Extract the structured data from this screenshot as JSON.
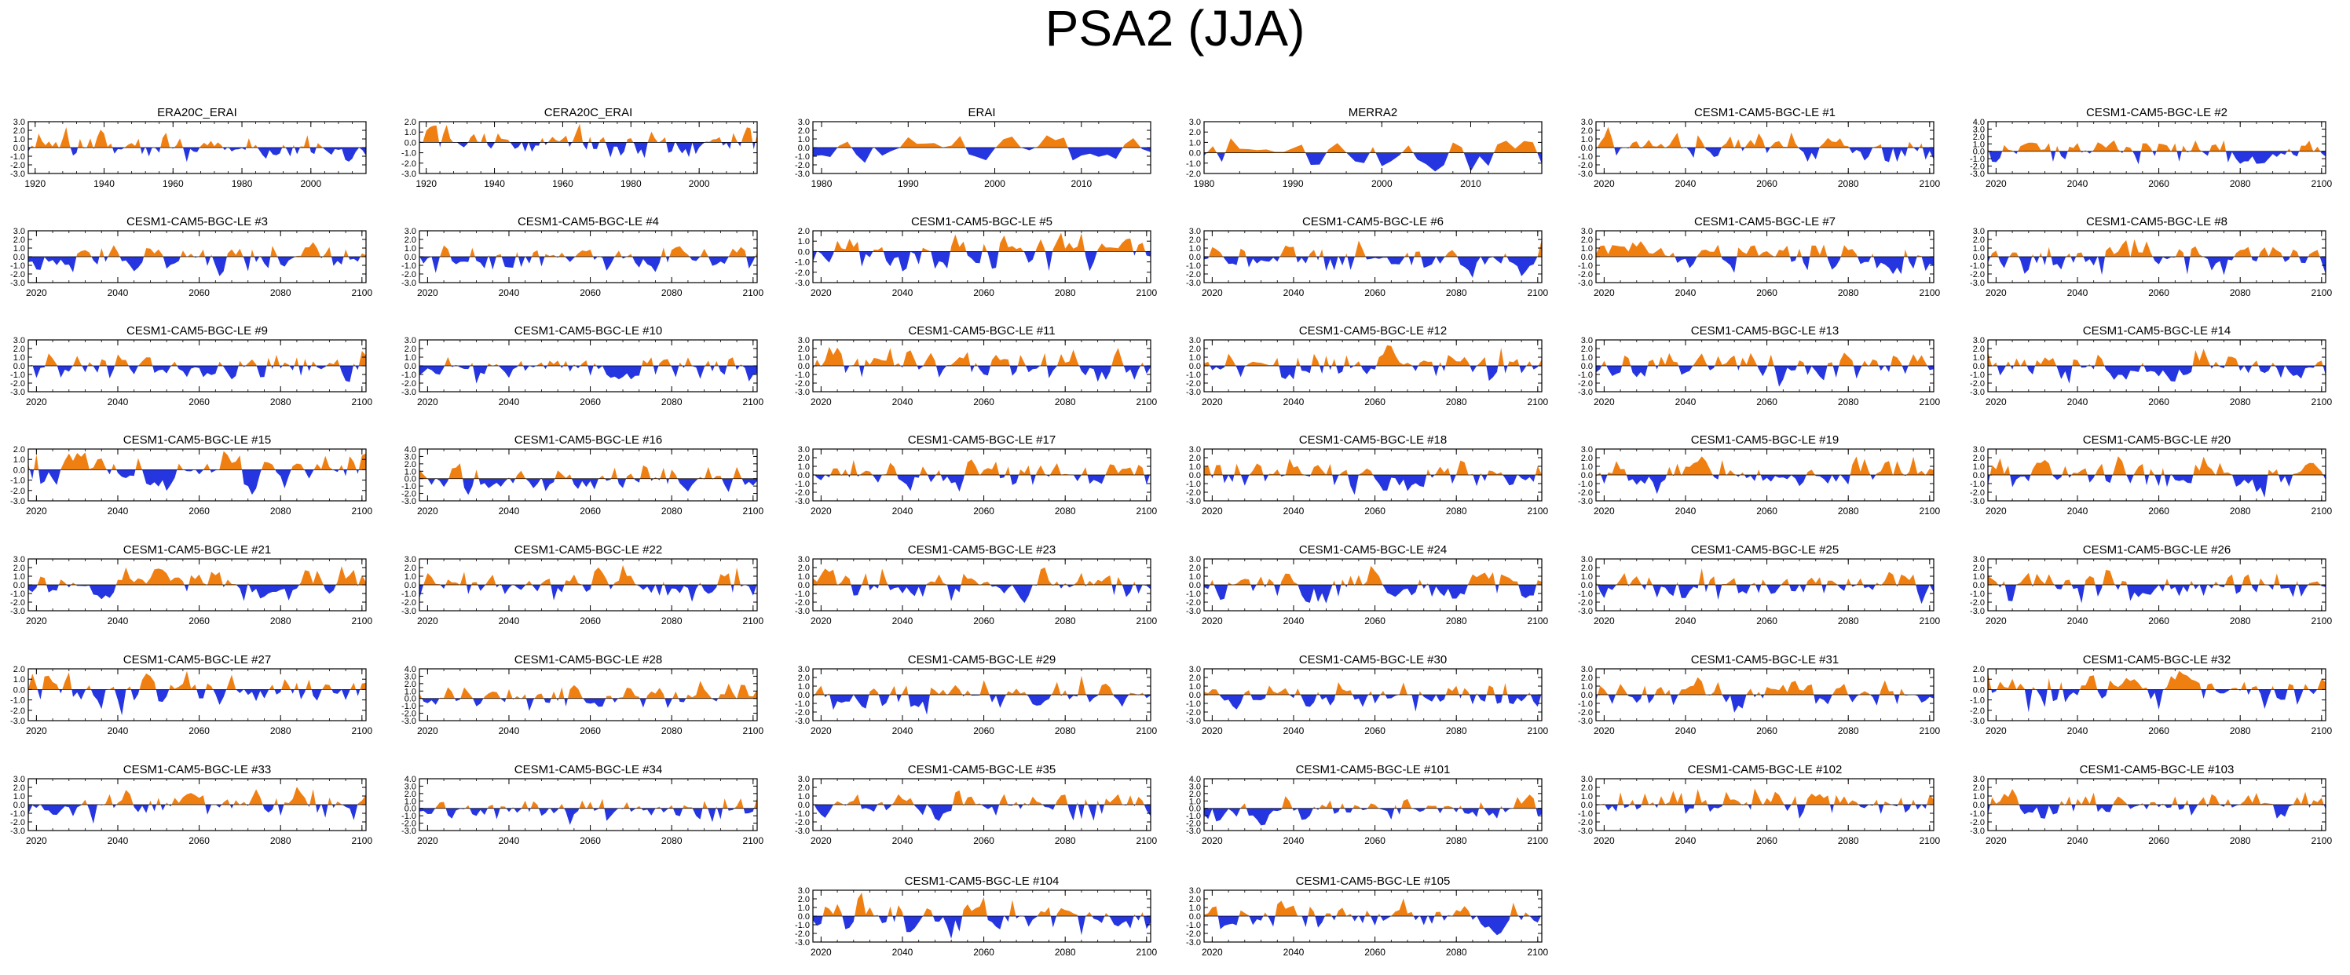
{
  "title": "PSA2 (JJA)",
  "colors": {
    "positive": "#f07f12",
    "negative": "#2535e0",
    "axis": "#000000"
  },
  "chart_data": [
    {
      "type": "area",
      "title": "ERA20C_ERAI",
      "x_range": [
        1918,
        2016
      ],
      "xticks": [
        "1920",
        "1940",
        "1960",
        "1980",
        "2000"
      ],
      "xtick_values": [
        1920,
        1940,
        1960,
        1980,
        2000
      ],
      "ylim": [
        -3,
        3
      ],
      "yticks": [
        "3.0",
        "2.0",
        "1.0",
        "0.0",
        "-1.0",
        "-2.0",
        "-3.0"
      ],
      "seed": 11,
      "scale": 0.75,
      "values": []
    },
    {
      "type": "area",
      "title": "CERA20C_ERAI",
      "x_range": [
        1918,
        2017
      ],
      "xticks": [
        "1920",
        "1940",
        "1960",
        "1980",
        "2000"
      ],
      "xtick_values": [
        1920,
        1940,
        1960,
        1980,
        2000
      ],
      "ylim": [
        -3,
        2
      ],
      "yticks": [
        "2.0",
        "1.0",
        "0.0",
        "-1.0",
        "-2.0",
        "-3.0"
      ],
      "seed": 12,
      "scale": 0.75,
      "values": []
    },
    {
      "type": "area",
      "title": "ERAI",
      "x_range": [
        1979,
        2018
      ],
      "xticks": [
        "1980",
        "1990",
        "2000",
        "2010"
      ],
      "xtick_values": [
        1980,
        1990,
        2000,
        2010
      ],
      "ylim": [
        -3,
        3
      ],
      "yticks": [
        "3.0",
        "2.0",
        "1.0",
        "0.0",
        "-1.0",
        "-2.0",
        "-3.0"
      ],
      "seed": 13,
      "scale": 0.9,
      "values": []
    },
    {
      "type": "area",
      "title": "MERRA2",
      "x_range": [
        1980,
        2018
      ],
      "xticks": [
        "1980",
        "1990",
        "2000",
        "2010"
      ],
      "xtick_values": [
        1980,
        1990,
        2000,
        2010
      ],
      "ylim": [
        -2,
        3
      ],
      "yticks": [
        "3.0",
        "2.0",
        "1.0",
        "0.0",
        "-1.0",
        "-2.0"
      ],
      "seed": 14,
      "scale": 0.9,
      "values": []
    },
    {
      "type": "area",
      "title": "CESM1-CAM5-BGC-LE #1",
      "seed": 101,
      "values": []
    },
    {
      "type": "area",
      "title": "CESM1-CAM5-BGC-LE #2",
      "seed": 102,
      "ylim": [
        -3,
        4
      ],
      "yticks": [
        "4.0",
        "3.0",
        "2.0",
        "1.0",
        "0.0",
        "-1.0",
        "-2.0",
        "-3.0"
      ],
      "values": []
    },
    {
      "type": "area",
      "title": "CESM1-CAM5-BGC-LE #3",
      "seed": 103,
      "values": []
    },
    {
      "type": "area",
      "title": "CESM1-CAM5-BGC-LE #4",
      "seed": 104,
      "values": []
    },
    {
      "type": "area",
      "title": "CESM1-CAM5-BGC-LE #5",
      "seed": 105,
      "ylim": [
        -3,
        2
      ],
      "yticks": [
        "2.0",
        "1.0",
        "0.0",
        "-1.0",
        "-2.0",
        "-3.0"
      ],
      "values": []
    },
    {
      "type": "area",
      "title": "CESM1-CAM5-BGC-LE #6",
      "seed": 106,
      "values": []
    },
    {
      "type": "area",
      "title": "CESM1-CAM5-BGC-LE #7",
      "seed": 107,
      "values": []
    },
    {
      "type": "area",
      "title": "CESM1-CAM5-BGC-LE #8",
      "seed": 108,
      "values": []
    },
    {
      "type": "area",
      "title": "CESM1-CAM5-BGC-LE #9",
      "seed": 109,
      "values": []
    },
    {
      "type": "area",
      "title": "CESM1-CAM5-BGC-LE #10",
      "seed": 110,
      "values": []
    },
    {
      "type": "area",
      "title": "CESM1-CAM5-BGC-LE #11",
      "seed": 111,
      "values": []
    },
    {
      "type": "area",
      "title": "CESM1-CAM5-BGC-LE #12",
      "seed": 112,
      "values": []
    },
    {
      "type": "area",
      "title": "CESM1-CAM5-BGC-LE #13",
      "seed": 113,
      "values": []
    },
    {
      "type": "area",
      "title": "CESM1-CAM5-BGC-LE #14",
      "seed": 114,
      "values": []
    },
    {
      "type": "area",
      "title": "CESM1-CAM5-BGC-LE #15",
      "seed": 115,
      "ylim": [
        -3,
        2
      ],
      "yticks": [
        "2.0",
        "1.0",
        "0.0",
        "-1.0",
        "-2.0",
        "-3.0"
      ],
      "values": []
    },
    {
      "type": "area",
      "title": "CESM1-CAM5-BGC-LE #16",
      "seed": 116,
      "ylim": [
        -3,
        4
      ],
      "yticks": [
        "4.0",
        "3.0",
        "2.0",
        "1.0",
        "0.0",
        "-1.0",
        "-2.0",
        "-3.0"
      ],
      "values": []
    },
    {
      "type": "area",
      "title": "CESM1-CAM5-BGC-LE #17",
      "seed": 117,
      "values": []
    },
    {
      "type": "area",
      "title": "CESM1-CAM5-BGC-LE #18",
      "seed": 118,
      "values": []
    },
    {
      "type": "area",
      "title": "CESM1-CAM5-BGC-LE #19",
      "seed": 119,
      "values": []
    },
    {
      "type": "area",
      "title": "CESM1-CAM5-BGC-LE #20",
      "seed": 120,
      "values": []
    },
    {
      "type": "area",
      "title": "CESM1-CAM5-BGC-LE #21",
      "seed": 121,
      "values": []
    },
    {
      "type": "area",
      "title": "CESM1-CAM5-BGC-LE #22",
      "seed": 122,
      "values": []
    },
    {
      "type": "area",
      "title": "CESM1-CAM5-BGC-LE #23",
      "seed": 123,
      "values": []
    },
    {
      "type": "area",
      "title": "CESM1-CAM5-BGC-LE #24",
      "seed": 124,
      "values": []
    },
    {
      "type": "area",
      "title": "CESM1-CAM5-BGC-LE #25",
      "seed": 125,
      "values": []
    },
    {
      "type": "area",
      "title": "CESM1-CAM5-BGC-LE #26",
      "seed": 126,
      "values": []
    },
    {
      "type": "area",
      "title": "CESM1-CAM5-BGC-LE #27",
      "seed": 127,
      "ylim": [
        -3,
        2
      ],
      "yticks": [
        "2.0",
        "1.0",
        "0.0",
        "-1.0",
        "-2.0",
        "-3.0"
      ],
      "values": []
    },
    {
      "type": "area",
      "title": "CESM1-CAM5-BGC-LE #28",
      "seed": 128,
      "ylim": [
        -3,
        4
      ],
      "yticks": [
        "4.0",
        "3.0",
        "2.0",
        "1.0",
        "0.0",
        "-1.0",
        "-2.0",
        "-3.0"
      ],
      "values": []
    },
    {
      "type": "area",
      "title": "CESM1-CAM5-BGC-LE #29",
      "seed": 129,
      "values": []
    },
    {
      "type": "area",
      "title": "CESM1-CAM5-BGC-LE #30",
      "seed": 130,
      "values": []
    },
    {
      "type": "area",
      "title": "CESM1-CAM5-BGC-LE #31",
      "seed": 131,
      "values": []
    },
    {
      "type": "area",
      "title": "CESM1-CAM5-BGC-LE #32",
      "seed": 132,
      "ylim": [
        -3,
        2
      ],
      "yticks": [
        "2.0",
        "1.0",
        "0.0",
        "-1.0",
        "-2.0",
        "-3.0"
      ],
      "values": []
    },
    {
      "type": "area",
      "title": "CESM1-CAM5-BGC-LE #33",
      "seed": 133,
      "values": []
    },
    {
      "type": "area",
      "title": "CESM1-CAM5-BGC-LE #34",
      "seed": 134,
      "ylim": [
        -3,
        4
      ],
      "yticks": [
        "4.0",
        "3.0",
        "2.0",
        "1.0",
        "0.0",
        "-1.0",
        "-2.0",
        "-3.0"
      ],
      "values": []
    },
    {
      "type": "area",
      "title": "CESM1-CAM5-BGC-LE #35",
      "seed": 135,
      "values": []
    },
    {
      "type": "area",
      "title": "CESM1-CAM5-BGC-LE #101",
      "seed": 136,
      "ylim": [
        -3,
        4
      ],
      "yticks": [
        "4.0",
        "3.0",
        "2.0",
        "1.0",
        "0.0",
        "-1.0",
        "-2.0",
        "-3.0"
      ],
      "values": []
    },
    {
      "type": "area",
      "title": "CESM1-CAM5-BGC-LE #102",
      "seed": 137,
      "values": []
    },
    {
      "type": "area",
      "title": "CESM1-CAM5-BGC-LE #103",
      "seed": 138,
      "values": []
    },
    {
      "type": "area",
      "title": "CESM1-CAM5-BGC-LE #104",
      "seed": 139,
      "values": []
    },
    {
      "type": "area",
      "title": "CESM1-CAM5-BGC-LE #105",
      "seed": 140,
      "values": []
    }
  ],
  "defaults": {
    "x_range": [
      2018,
      2101
    ],
    "xticks": [
      "2020",
      "2040",
      "2060",
      "2080",
      "2100"
    ],
    "xtick_values": [
      2020,
      2040,
      2060,
      2080,
      2100
    ],
    "ylim": [
      -3,
      3
    ],
    "yticks": [
      "3.0",
      "2.0",
      "1.0",
      "0.0",
      "-1.0",
      "-2.0",
      "-3.0"
    ],
    "scale": 0.85
  }
}
